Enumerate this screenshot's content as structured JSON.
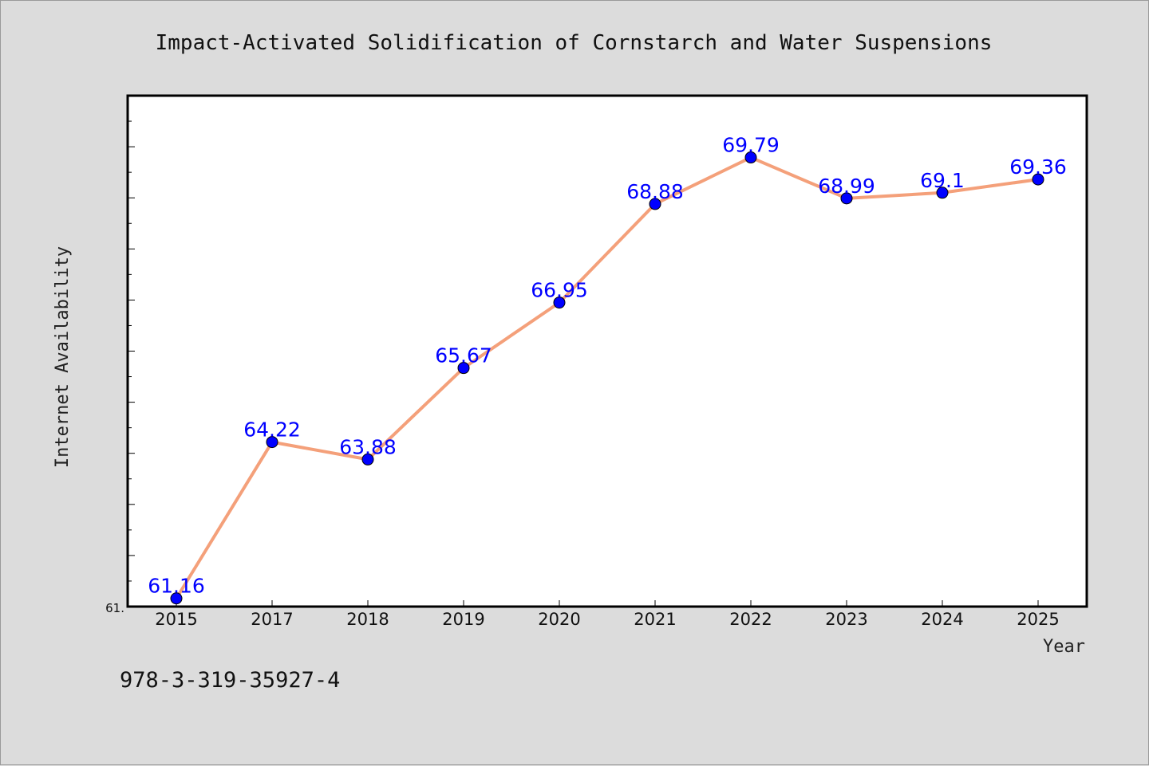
{
  "footer_text": "978-3-319-35927-4",
  "colors": {
    "background": "#dcdcdc",
    "plot_background": "#ffffff",
    "line": "#f4a07a",
    "marker": "#0000ff",
    "data_label": "#0000ff"
  },
  "chart_data": {
    "type": "line",
    "title": "Impact-Activated Solidification of Cornstarch and Water Suspensions",
    "xlabel": "Year",
    "ylabel": "Internet Availability",
    "categories": [
      "2015",
      "2017",
      "2018",
      "2019",
      "2020",
      "2021",
      "2022",
      "2023",
      "2024",
      "2025"
    ],
    "series": [
      {
        "values": [
          61.16,
          64.22,
          63.88,
          65.67,
          66.95,
          68.88,
          69.79,
          68.99,
          69.1,
          69.36
        ],
        "data_labels": [
          "61.16",
          "64.22",
          "63.88",
          "65.67",
          "66.95",
          "68.88",
          "69.79",
          "68.99",
          "69.1",
          "69.36"
        ]
      }
    ],
    "ylim": [
      61.0,
      71.0
    ],
    "y_tick_label": "61.",
    "grid": false,
    "legend": "none"
  }
}
